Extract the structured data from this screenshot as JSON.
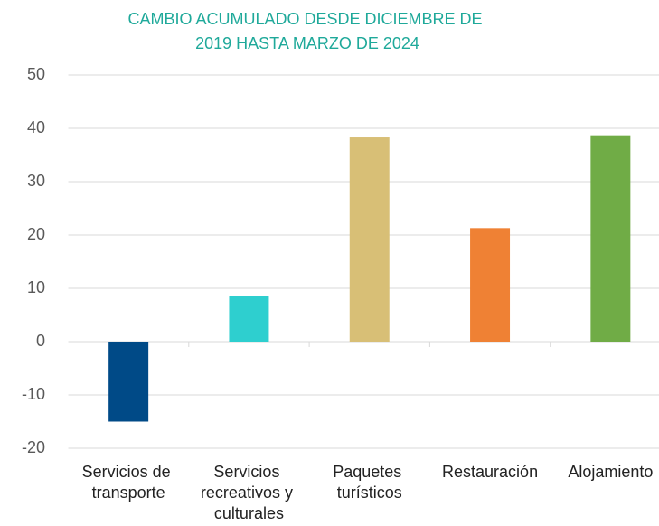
{
  "chart_data": {
    "type": "bar",
    "title": "CAMBIO ACUMULADO DESDE DICIEMBRE DE 2019 HASTA MARZO DE 2024",
    "categories": [
      "Servicios de transporte",
      "Servicios recreativos y culturales",
      "Paquetes turísticos",
      "Restauración",
      "Alojamiento"
    ],
    "values": [
      -15,
      8.5,
      38.3,
      21.3,
      38.7
    ],
    "colors": [
      "#004a87",
      "#2ecfcf",
      "#d8bf76",
      "#ef8134",
      "#70ac46"
    ],
    "ylim": [
      -20,
      50
    ],
    "yticks": [
      -20,
      -10,
      0,
      10,
      20,
      30,
      40,
      50
    ],
    "grid": true
  }
}
